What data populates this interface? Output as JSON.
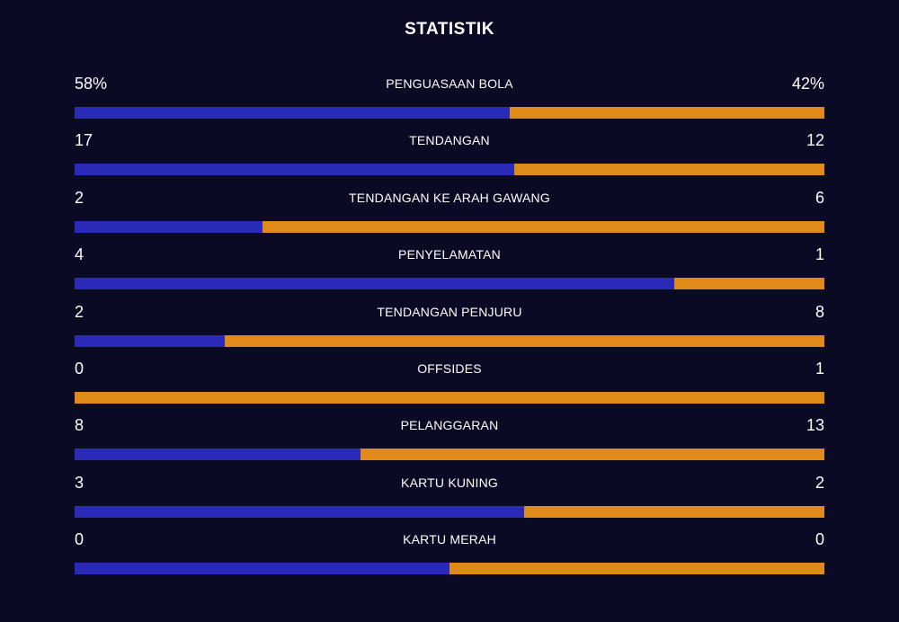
{
  "header": {
    "title": "STATISTIK"
  },
  "colors": {
    "background": "#0a0a24",
    "home": "#2a2ab8",
    "away": "#e08a1a"
  },
  "stats": [
    {
      "label": "PENGUASAAN BOLA",
      "home": "58%",
      "away": "42%",
      "home_share": 0.58
    },
    {
      "label": "TENDANGAN",
      "home": "17",
      "away": "12",
      "home_share": 0.586
    },
    {
      "label": "TENDANGAN KE ARAH GAWANG",
      "home": "2",
      "away": "6",
      "home_share": 0.25
    },
    {
      "label": "PENYELAMATAN",
      "home": "4",
      "away": "1",
      "home_share": 0.8
    },
    {
      "label": "TENDANGAN PENJURU",
      "home": "2",
      "away": "8",
      "home_share": 0.2
    },
    {
      "label": "OFFSIDES",
      "home": "0",
      "away": "1",
      "home_share": 0.0
    },
    {
      "label": "PELANGGARAN",
      "home": "8",
      "away": "13",
      "home_share": 0.381
    },
    {
      "label": "KARTU KUNING",
      "home": "3",
      "away": "2",
      "home_share": 0.6
    },
    {
      "label": "KARTU MERAH",
      "home": "0",
      "away": "0",
      "home_share": 0.5
    }
  ]
}
